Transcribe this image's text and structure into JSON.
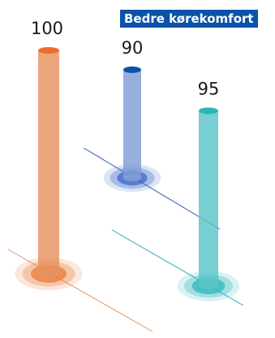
{
  "chart_data": {
    "type": "bar",
    "title": "Bedre kørekomfort",
    "categories": [
      "",
      "",
      ""
    ],
    "values": [
      100,
      90,
      95
    ],
    "colors": {
      "bars": [
        "#e8925e",
        "#7f9fd6",
        "#5bc4c8"
      ],
      "caps": [
        "#e96e2e",
        "#0b52a8",
        "#2bb6b3"
      ],
      "lines": [
        "#e8905b",
        "#2a5fb3",
        "#22a9b3"
      ],
      "glow": [
        "#e87b3d",
        "#3d67c6",
        "#2bb7bc"
      ]
    }
  }
}
